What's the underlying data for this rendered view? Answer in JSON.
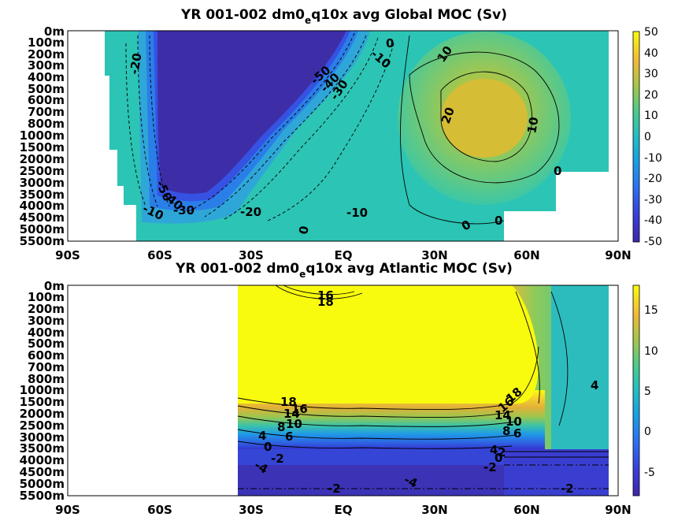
{
  "chart_data": [
    {
      "type": "heatmap",
      "title_main": "YR 001-002 dm0",
      "title_sub": "e",
      "title_rest": "q10x avg  Global MOC (Sv)",
      "x_ticks": [
        "90S",
        "60S",
        "30S",
        "EQ",
        "30N",
        "60N",
        "90N"
      ],
      "y_ticks": [
        "0m",
        "100m",
        "200m",
        "300m",
        "400m",
        "500m",
        "600m",
        "700m",
        "800m",
        "1000m",
        "1500m",
        "2000m",
        "2500m",
        "3000m",
        "3500m",
        "4000m",
        "4500m",
        "5000m",
        "5500m"
      ],
      "colorbar_ticks": [
        "50",
        "40",
        "30",
        "20",
        "10",
        "0",
        "-10",
        "-20",
        "-30",
        "-40",
        "-50"
      ],
      "zlim": [
        -50,
        50
      ],
      "contour_labels": [
        "-20",
        "-50",
        "-40",
        "-30",
        "-10",
        "0",
        "10",
        "20",
        "10",
        "0",
        "-50",
        "-40",
        "-30",
        "-10",
        "-20",
        "-10",
        "0",
        "0",
        "0"
      ],
      "colormap": [
        "#3e26a8",
        "#2f57e0",
        "#1790f0",
        "#1fadd9",
        "#2ec4b6",
        "#48cc8c",
        "#8cca5a",
        "#c6c03a",
        "#f0bb35",
        "#f9e01e"
      ]
    },
    {
      "type": "heatmap",
      "title_main": "YR 001-002 dm0",
      "title_sub": "e",
      "title_rest": "q10x avg  Atlantic MOC (Sv)",
      "x_ticks": [
        "90S",
        "60S",
        "30S",
        "EQ",
        "30N",
        "60N",
        "90N"
      ],
      "y_ticks": [
        "0m",
        "100m",
        "200m",
        "300m",
        "400m",
        "500m",
        "600m",
        "700m",
        "800m",
        "1000m",
        "1500m",
        "2000m",
        "2500m",
        "3000m",
        "3500m",
        "4000m",
        "4500m",
        "5000m",
        "5500m"
      ],
      "colorbar_ticks": [
        "15",
        "10",
        "5",
        "0",
        "-5"
      ],
      "zlim": [
        -8,
        18
      ],
      "contour_labels": [
        "16",
        "18",
        "18",
        "16",
        "14",
        "10",
        "8",
        "6",
        "4",
        "0",
        "-2",
        "-4",
        "18",
        "16",
        "14",
        "10",
        "8",
        "6",
        "4",
        "2",
        "0",
        "-2",
        "-2",
        "-4",
        "-2",
        "4"
      ],
      "colormap": [
        "#3e26a8",
        "#2f57e0",
        "#1790f0",
        "#1fadd9",
        "#2ec4b6",
        "#48cc8c",
        "#8cca5a",
        "#c6c03a",
        "#f0bb35",
        "#f9e01e"
      ]
    }
  ]
}
